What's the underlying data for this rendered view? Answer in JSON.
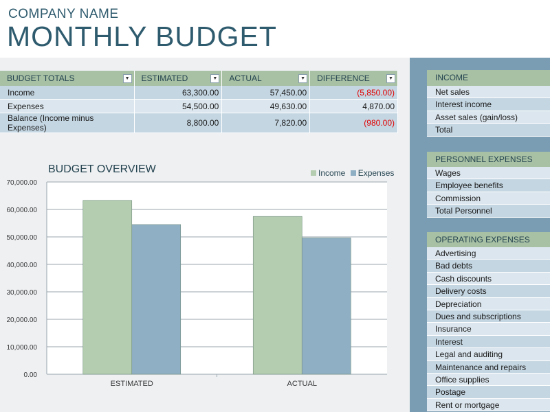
{
  "header": {
    "company_name": "COMPANY NAME",
    "title": "MONTHLY BUDGET"
  },
  "budget_totals": {
    "headers": [
      "BUDGET TOTALS",
      "ESTIMATED",
      "ACTUAL",
      "DIFFERENCE"
    ],
    "rows": [
      {
        "label": "Income",
        "estimated": "63,300.00",
        "actual": "57,450.00",
        "difference": "(5,850.00)",
        "negative": true
      },
      {
        "label": "Expenses",
        "estimated": "54,500.00",
        "actual": "49,630.00",
        "difference": "4,870.00",
        "negative": false
      },
      {
        "label": "Balance (Income minus Expenses)",
        "estimated": "8,800.00",
        "actual": "7,820.00",
        "difference": "(980.00)",
        "negative": true
      }
    ]
  },
  "chart_data": {
    "type": "bar",
    "title": "BUDGET OVERVIEW",
    "categories": [
      "ESTIMATED",
      "ACTUAL"
    ],
    "series": [
      {
        "name": "Income",
        "values": [
          63300,
          57450
        ],
        "color": "#b4cdb1"
      },
      {
        "name": "Expenses",
        "values": [
          54500,
          49630
        ],
        "color": "#8fafc4"
      }
    ],
    "ylim": [
      0,
      70000
    ],
    "yticks": [
      "0.00",
      "10,000.00",
      "20,000.00",
      "30,000.00",
      "40,000.00",
      "50,000.00",
      "60,000.00",
      "70,000.00"
    ],
    "legend": "top-right",
    "grid": true
  },
  "sections": {
    "income": {
      "title": "INCOME",
      "items": [
        "Net sales",
        "Interest income",
        "Asset sales (gain/loss)",
        "Total"
      ]
    },
    "personnel": {
      "title": "PERSONNEL EXPENSES",
      "items": [
        "Wages",
        "Employee benefits",
        "Commission",
        "Total Personnel"
      ]
    },
    "operating": {
      "title": "OPERATING EXPENSES",
      "items": [
        "Advertising",
        "Bad debts",
        "Cash discounts",
        "Delivery costs",
        "Depreciation",
        "Dues and subscriptions",
        "Insurance",
        "Interest",
        "Legal and auditing",
        "Maintenance and repairs",
        "Office supplies",
        "Postage",
        "Rent or mortgage"
      ]
    }
  },
  "colors": {
    "accent_dark": "#2f5b6e",
    "header_green": "#a8c1a5",
    "row_blue": "#c4d6e2",
    "panel_blue": "#7b9db3",
    "negative_red": "#e00000"
  }
}
